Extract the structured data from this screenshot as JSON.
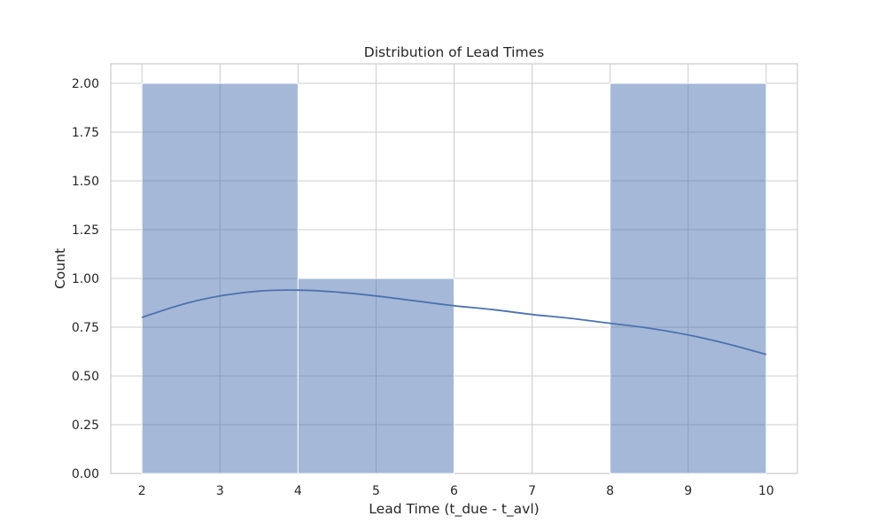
{
  "chart_data": {
    "type": "bar",
    "title": "Distribution of Lead Times",
    "xlabel": "Lead Time (t_due - t_avl)",
    "ylabel": "Count",
    "xlim": [
      1.6,
      10.4
    ],
    "ylim": [
      0,
      2.1
    ],
    "x_ticks": [
      2,
      3,
      4,
      5,
      6,
      7,
      8,
      9,
      10
    ],
    "y_ticks": [
      0.0,
      0.25,
      0.5,
      0.75,
      1.0,
      1.25,
      1.5,
      1.75,
      2.0
    ],
    "y_tick_labels": [
      "0.00",
      "0.25",
      "0.50",
      "0.75",
      "1.00",
      "1.25",
      "1.50",
      "1.75",
      "2.00"
    ],
    "bins": [
      {
        "x0": 2,
        "x1": 4,
        "count": 2
      },
      {
        "x0": 4,
        "x1": 6,
        "count": 1
      },
      {
        "x0": 6,
        "x1": 8,
        "count": 0
      },
      {
        "x0": 8,
        "x1": 10,
        "count": 2
      }
    ],
    "kde": {
      "x": [
        2,
        2.5,
        3,
        3.5,
        4,
        4.5,
        5,
        5.5,
        6,
        6.5,
        7,
        7.5,
        8,
        8.5,
        9,
        9.5,
        10
      ],
      "y": [
        0.8,
        0.865,
        0.91,
        0.935,
        0.94,
        0.93,
        0.91,
        0.885,
        0.86,
        0.84,
        0.815,
        0.795,
        0.77,
        0.745,
        0.71,
        0.665,
        0.61
      ]
    },
    "grid": true,
    "colors": {
      "bar": "#4c72b0",
      "line": "#4c72b0",
      "grid": "#cccccc"
    }
  }
}
